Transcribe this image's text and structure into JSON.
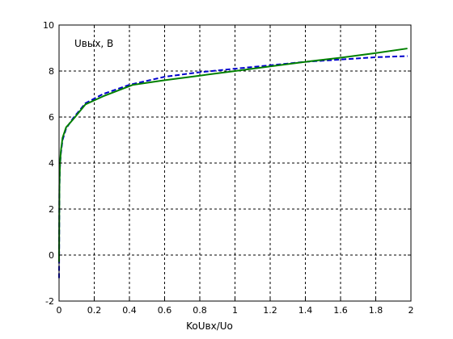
{
  "chart_data": {
    "type": "line",
    "title": "",
    "xlabel": "KoUвх/Uo",
    "ylabel": "",
    "annotation": "Uвых, В",
    "xlim": [
      0,
      2
    ],
    "ylim": [
      -2,
      10
    ],
    "x_ticks": [
      0,
      0.2,
      0.4,
      0.6,
      0.8,
      1,
      1.2,
      1.4,
      1.6,
      1.8,
      2
    ],
    "x_tick_labels": [
      "0",
      "0.2",
      "0.4",
      "0.6",
      "0.8",
      "1",
      "1.2",
      "1.4",
      "1.6",
      "1.8",
      "2"
    ],
    "y_ticks": [
      -2,
      0,
      2,
      4,
      6,
      8,
      10
    ],
    "y_tick_labels": [
      "-2",
      "0",
      "2",
      "4",
      "6",
      "8",
      "10"
    ],
    "grid": true,
    "series": [
      {
        "color": "#0000cc",
        "line_style": "dashed",
        "points": [
          [
            0,
            -1
          ],
          [
            0.002,
            2.8
          ],
          [
            0.005,
            3.8
          ],
          [
            0.01,
            4.4
          ],
          [
            0.02,
            5.0
          ],
          [
            0.04,
            5.5
          ],
          [
            0.08,
            5.95
          ],
          [
            0.15,
            6.6
          ],
          [
            0.25,
            7.0
          ],
          [
            0.4,
            7.4
          ],
          [
            0.6,
            7.75
          ],
          [
            0.8,
            7.95
          ],
          [
            1.0,
            8.1
          ],
          [
            1.2,
            8.25
          ],
          [
            1.4,
            8.4
          ],
          [
            1.6,
            8.5
          ],
          [
            1.8,
            8.6
          ],
          [
            1.98,
            8.65
          ]
        ]
      },
      {
        "color": "#008000",
        "line_style": "solid",
        "points": [
          [
            0,
            -0.3
          ],
          [
            0.002,
            3.0
          ],
          [
            0.005,
            3.9
          ],
          [
            0.01,
            4.5
          ],
          [
            0.02,
            5.1
          ],
          [
            0.04,
            5.55
          ],
          [
            0.08,
            5.9
          ],
          [
            0.15,
            6.55
          ],
          [
            0.25,
            6.9
          ],
          [
            0.42,
            7.4
          ],
          [
            0.6,
            7.6
          ],
          [
            0.8,
            7.8
          ],
          [
            1.0,
            8.0
          ],
          [
            1.2,
            8.2
          ],
          [
            1.4,
            8.4
          ],
          [
            1.6,
            8.58
          ],
          [
            1.8,
            8.78
          ],
          [
            1.98,
            8.98
          ]
        ]
      }
    ]
  }
}
